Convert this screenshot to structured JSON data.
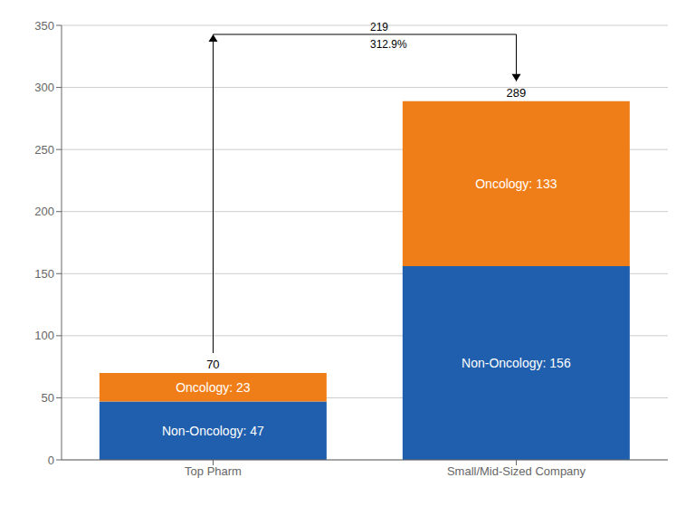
{
  "chart_data": {
    "type": "bar",
    "stacked": true,
    "categories": [
      "Top Pharm",
      "Small/Mid-Sized Company"
    ],
    "series": [
      {
        "color": "#1F5FAD",
        "values": [
          47,
          156
        ],
        "value_labels": [
          "Non-Oncology: 47",
          "Non-Oncology: 156"
        ]
      },
      {
        "color": "#F07E18",
        "values": [
          23,
          133
        ],
        "value_labels": [
          "Oncology: 23",
          "Oncology: 133"
        ]
      }
    ],
    "totals": [
      70,
      289
    ],
    "data_labels": true,
    "annotations": [
      "219",
      "312.9%"
    ],
    "ylim": [
      0,
      350
    ],
    "yticks": [
      0,
      50,
      100,
      150,
      200,
      250,
      300,
      350
    ],
    "grid": true
  }
}
